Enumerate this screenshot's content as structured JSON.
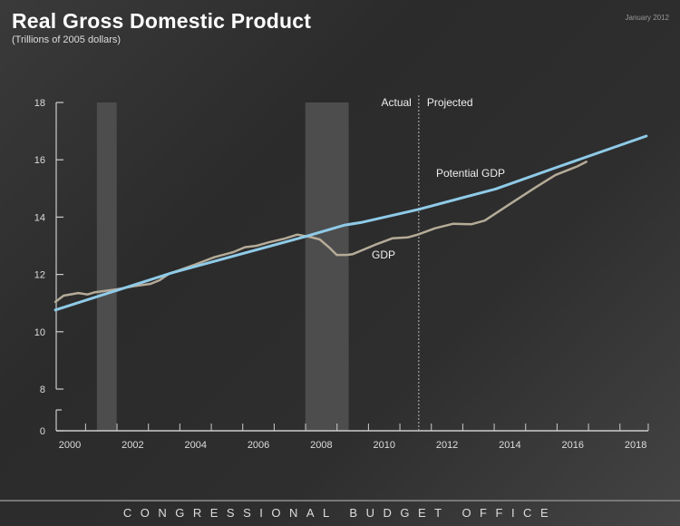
{
  "header": {
    "title": "Real Gross Domestic Product",
    "subtitle": "(Trillions of 2005 dollars)",
    "date": "January 2012"
  },
  "footer": {
    "text": "CONGRESSIONAL BUDGET OFFICE"
  },
  "chart_data": {
    "type": "line",
    "title": "Real Gross Domestic Product",
    "ylabel": "Trillions of 2005 dollars",
    "xlim": [
      2000,
      2018.9
    ],
    "ylim": [
      0,
      18
    ],
    "y_axis_break": [
      0,
      8
    ],
    "yticks": [
      0,
      8,
      10,
      12,
      14,
      16,
      18
    ],
    "xticks": [
      2000,
      2002,
      2004,
      2006,
      2008,
      2010,
      2012,
      2014,
      2016,
      2018
    ],
    "recessions": [
      [
        2001.36,
        2001.99
      ],
      [
        2007.99,
        2009.37
      ]
    ],
    "projection_start": 2011.6,
    "annotations": {
      "actual": "Actual",
      "projected": "Projected"
    },
    "colors": {
      "gdp": "#b5ab98",
      "potential": "#8fcbe8",
      "recession": "#4d4d4d"
    },
    "series": [
      {
        "name": "Potential GDP",
        "label": "Potential GDP",
        "points": [
          [
            2000.04,
            10.76
          ],
          [
            2003.76,
            12.06
          ],
          [
            2007.98,
            13.32
          ],
          [
            2009.24,
            13.72
          ],
          [
            2009.8,
            13.82
          ],
          [
            2011.59,
            14.27
          ],
          [
            2014.04,
            14.98
          ],
          [
            2015.95,
            15.72
          ],
          [
            2018.84,
            16.83
          ]
        ]
      },
      {
        "name": "GDP",
        "label": "GDP",
        "points": [
          [
            2000.04,
            11.04
          ],
          [
            2000.3,
            11.26
          ],
          [
            2000.77,
            11.35
          ],
          [
            2001.06,
            11.3
          ],
          [
            2001.3,
            11.38
          ],
          [
            2002.0,
            11.48
          ],
          [
            2002.6,
            11.6
          ],
          [
            2003.07,
            11.67
          ],
          [
            2003.36,
            11.8
          ],
          [
            2003.65,
            12.02
          ],
          [
            2004.5,
            12.35
          ],
          [
            2005.1,
            12.6
          ],
          [
            2005.7,
            12.78
          ],
          [
            2006.07,
            12.95
          ],
          [
            2006.44,
            13.0
          ],
          [
            2006.83,
            13.12
          ],
          [
            2007.3,
            13.24
          ],
          [
            2007.74,
            13.39
          ],
          [
            2008.17,
            13.3
          ],
          [
            2008.45,
            13.22
          ],
          [
            2008.75,
            12.94
          ],
          [
            2008.99,
            12.68
          ],
          [
            2009.3,
            12.68
          ],
          [
            2009.5,
            12.71
          ],
          [
            2010.2,
            13.03
          ],
          [
            2010.76,
            13.26
          ],
          [
            2011.25,
            13.29
          ],
          [
            2011.59,
            13.4
          ],
          [
            2012.12,
            13.61
          ],
          [
            2012.7,
            13.77
          ],
          [
            2013.27,
            13.75
          ],
          [
            2013.7,
            13.88
          ],
          [
            2014.42,
            14.4
          ],
          [
            2015.3,
            15.03
          ],
          [
            2015.95,
            15.47
          ],
          [
            2016.64,
            15.77
          ],
          [
            2016.93,
            15.93
          ]
        ]
      }
    ]
  }
}
